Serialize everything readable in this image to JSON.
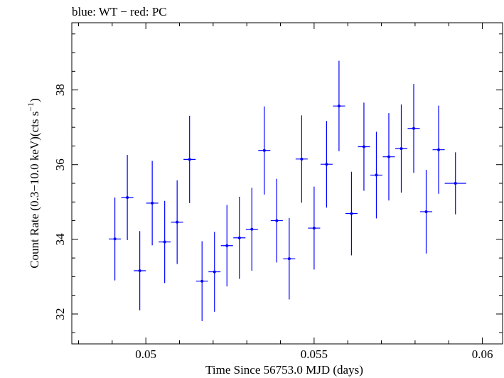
{
  "chart_data": {
    "type": "scatter",
    "title": "blue: WT − red: PC",
    "xlabel": "Time Since 56753.0 MJD (days)",
    "ylabel_main": "Count Rate (0.3−10.0 keV)(cts s",
    "ylabel_sup": "−1",
    "ylabel_tail": ")",
    "xlim": [
      0.0478,
      0.0606
    ],
    "ylim": [
      31.2,
      39.8
    ],
    "x_ticks": [
      0.05,
      0.055,
      0.06
    ],
    "x_tick_labels": [
      "0.05",
      "0.055",
      "0.06"
    ],
    "y_ticks": [
      32,
      34,
      36,
      38
    ],
    "y_tick_labels": [
      "32",
      "34",
      "36",
      "38"
    ],
    "grid": false,
    "series": [
      {
        "color": "#0000ff",
        "points": [
          {
            "x": 0.04908,
            "xerr": 0.00018,
            "y": 34.01,
            "yerr": 1.11
          },
          {
            "x": 0.04945,
            "xerr": 0.00018,
            "y": 35.12,
            "yerr": 1.14
          },
          {
            "x": 0.04982,
            "xerr": 0.00018,
            "y": 33.16,
            "yerr": 1.06
          },
          {
            "x": 0.05019,
            "xerr": 0.00018,
            "y": 34.97,
            "yerr": 1.13
          },
          {
            "x": 0.05056,
            "xerr": 0.00018,
            "y": 33.93,
            "yerr": 1.1
          },
          {
            "x": 0.05093,
            "xerr": 0.00018,
            "y": 34.46,
            "yerr": 1.12
          },
          {
            "x": 0.0513,
            "xerr": 0.00018,
            "y": 36.14,
            "yerr": 1.17
          },
          {
            "x": 0.05167,
            "xerr": 0.00018,
            "y": 32.88,
            "yerr": 1.07
          },
          {
            "x": 0.05204,
            "xerr": 0.00018,
            "y": 33.13,
            "yerr": 1.07
          },
          {
            "x": 0.05241,
            "xerr": 0.00018,
            "y": 33.83,
            "yerr": 1.09
          },
          {
            "x": 0.05278,
            "xerr": 0.00018,
            "y": 34.04,
            "yerr": 1.1
          },
          {
            "x": 0.05315,
            "xerr": 0.00018,
            "y": 34.27,
            "yerr": 1.11
          },
          {
            "x": 0.05352,
            "xerr": 0.00018,
            "y": 36.38,
            "yerr": 1.18
          },
          {
            "x": 0.05389,
            "xerr": 0.00018,
            "y": 34.5,
            "yerr": 1.12
          },
          {
            "x": 0.05426,
            "xerr": 0.00018,
            "y": 33.48,
            "yerr": 1.09
          },
          {
            "x": 0.05463,
            "xerr": 0.00018,
            "y": 36.15,
            "yerr": 1.17
          },
          {
            "x": 0.055,
            "xerr": 0.00018,
            "y": 34.3,
            "yerr": 1.11
          },
          {
            "x": 0.05537,
            "xerr": 0.00018,
            "y": 36.01,
            "yerr": 1.16
          },
          {
            "x": 0.05574,
            "xerr": 0.00018,
            "y": 37.57,
            "yerr": 1.21
          },
          {
            "x": 0.05611,
            "xerr": 0.00018,
            "y": 34.69,
            "yerr": 1.12
          },
          {
            "x": 0.05648,
            "xerr": 0.00018,
            "y": 36.48,
            "yerr": 1.18
          },
          {
            "x": 0.05685,
            "xerr": 0.00018,
            "y": 35.72,
            "yerr": 1.16
          },
          {
            "x": 0.05722,
            "xerr": 0.00018,
            "y": 36.21,
            "yerr": 1.17
          },
          {
            "x": 0.05759,
            "xerr": 0.00018,
            "y": 36.43,
            "yerr": 1.18
          },
          {
            "x": 0.05796,
            "xerr": 0.00018,
            "y": 36.97,
            "yerr": 1.19
          },
          {
            "x": 0.05833,
            "xerr": 0.00018,
            "y": 34.74,
            "yerr": 1.12
          },
          {
            "x": 0.0587,
            "xerr": 0.00018,
            "y": 36.4,
            "yerr": 1.18
          },
          {
            "x": 0.0592,
            "xerr": 0.00032,
            "y": 35.5,
            "yerr": 0.83
          }
        ]
      }
    ]
  }
}
